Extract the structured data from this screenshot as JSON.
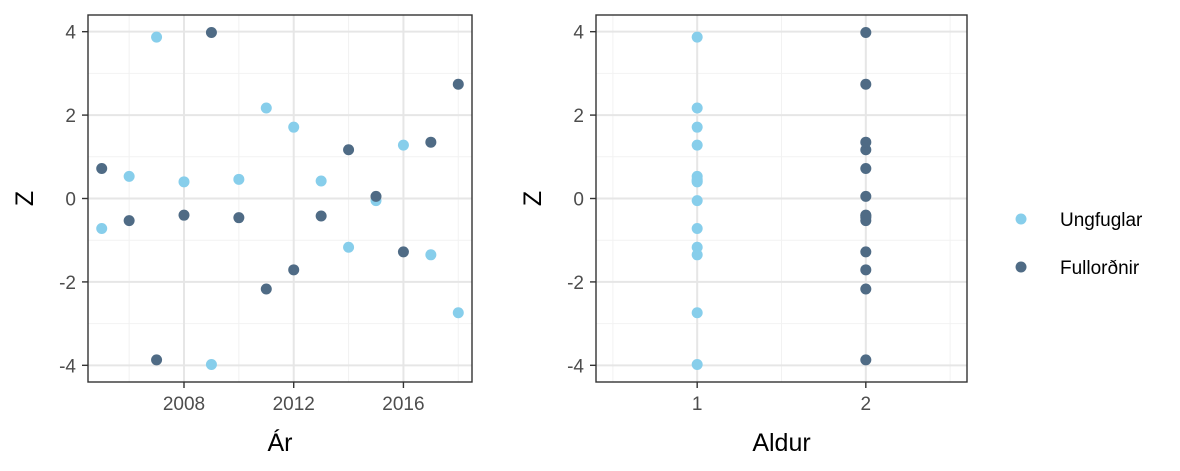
{
  "chart_data": [
    {
      "type": "scatter",
      "xlabel": "Ár",
      "ylabel": "Z",
      "xlim": [
        2004.5,
        2018.5
      ],
      "ylim": [
        -4.4,
        4.4
      ],
      "xticks": [
        2008,
        2012,
        2016
      ],
      "yticks": [
        -4,
        -2,
        0,
        2,
        4
      ],
      "grid": true,
      "series": [
        {
          "name": "Ungfuglar",
          "points": [
            [
              2005,
              -0.72
            ],
            [
              2006,
              0.53
            ],
            [
              2007,
              3.87
            ],
            [
              2008,
              0.4
            ],
            [
              2009,
              -3.98
            ],
            [
              2010,
              0.46
            ],
            [
              2011,
              2.17
            ],
            [
              2012,
              1.71
            ],
            [
              2013,
              0.42
            ],
            [
              2014,
              -1.17
            ],
            [
              2015,
              -0.05
            ],
            [
              2016,
              1.28
            ],
            [
              2017,
              -1.35
            ],
            [
              2018,
              -2.74
            ]
          ]
        },
        {
          "name": "Fullorðnir",
          "points": [
            [
              2005,
              0.72
            ],
            [
              2006,
              -0.53
            ],
            [
              2007,
              -3.87
            ],
            [
              2008,
              -0.4
            ],
            [
              2009,
              3.98
            ],
            [
              2010,
              -0.46
            ],
            [
              2011,
              -2.17
            ],
            [
              2012,
              -1.71
            ],
            [
              2013,
              -0.42
            ],
            [
              2014,
              1.17
            ],
            [
              2015,
              0.05
            ],
            [
              2016,
              -1.28
            ],
            [
              2017,
              1.35
            ],
            [
              2018,
              2.74
            ]
          ]
        }
      ]
    },
    {
      "type": "scatter",
      "xlabel": "Aldur",
      "ylabel": "Z",
      "xlim": [
        0.4,
        2.6
      ],
      "ylim": [
        -4.4,
        4.4
      ],
      "xticks": [
        1,
        2
      ],
      "yticks": [
        -4,
        -2,
        0,
        2,
        4
      ],
      "grid": true,
      "series": [
        {
          "name": "Ungfuglar",
          "points": [
            [
              1,
              -0.72
            ],
            [
              1,
              0.53
            ],
            [
              1,
              3.87
            ],
            [
              1,
              0.4
            ],
            [
              1,
              -3.98
            ],
            [
              1,
              0.46
            ],
            [
              1,
              2.17
            ],
            [
              1,
              1.71
            ],
            [
              1,
              0.42
            ],
            [
              1,
              -1.17
            ],
            [
              1,
              -0.05
            ],
            [
              1,
              1.28
            ],
            [
              1,
              -1.35
            ],
            [
              1,
              -2.74
            ]
          ]
        },
        {
          "name": "Fullorðnir",
          "points": [
            [
              2,
              0.72
            ],
            [
              2,
              -0.53
            ],
            [
              2,
              -3.87
            ],
            [
              2,
              -0.4
            ],
            [
              2,
              3.98
            ],
            [
              2,
              -0.46
            ],
            [
              2,
              -2.17
            ],
            [
              2,
              -1.71
            ],
            [
              2,
              -0.42
            ],
            [
              2,
              1.17
            ],
            [
              2,
              0.05
            ],
            [
              2,
              -1.28
            ],
            [
              2,
              1.35
            ],
            [
              2,
              2.74
            ]
          ]
        }
      ]
    }
  ],
  "legend": {
    "placement": "right",
    "items": [
      {
        "label": "Ungfuglar",
        "color": "#87ceeb"
      },
      {
        "label": "Fullorðnir",
        "color": "#4f6b85"
      }
    ]
  }
}
